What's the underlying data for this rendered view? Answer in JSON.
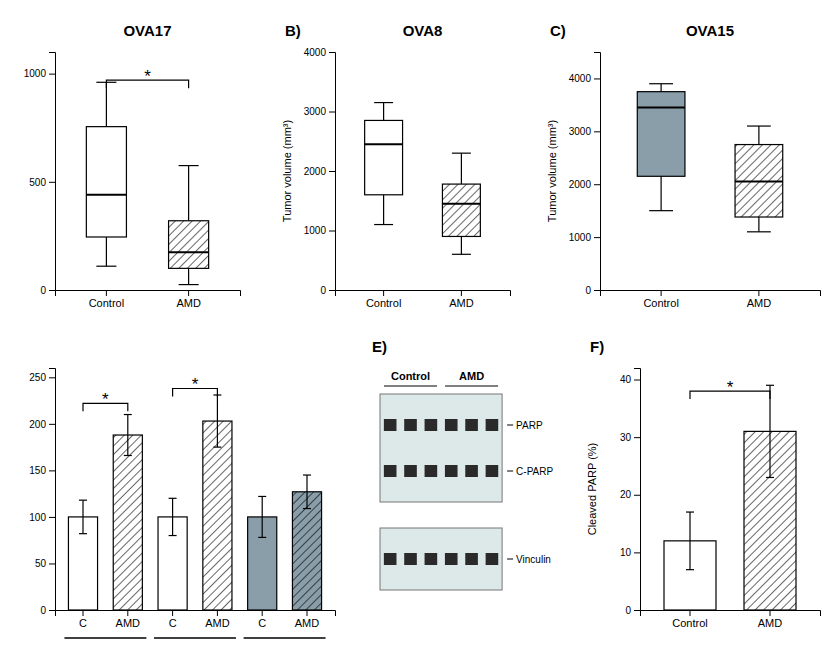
{
  "chart_data": [
    {
      "type": "box",
      "title": "OVA17",
      "categories": [
        "Control",
        "AMD"
      ],
      "values": [
        {
          "whislo": 110,
          "q1": 245,
          "med": 440,
          "q3": 755,
          "whishi": 960
        },
        {
          "whislo": 25,
          "q1": 100,
          "med": 175,
          "q3": 320,
          "whishi": 575
        }
      ],
      "colors": [
        "white",
        "white"
      ],
      "ylim": [
        0,
        1100
      ],
      "yticks": [
        0,
        500,
        1000
      ],
      "annotations": [
        {
          "text": "*",
          "between": [
            0,
            1
          ],
          "y": 970
        }
      ]
    },
    {
      "type": "box",
      "title": "OVA8",
      "ylabel": "Tumor volume (mm³)",
      "categories": [
        "Control",
        "AMD"
      ],
      "values": [
        {
          "whislo": 1100,
          "q1": 1600,
          "med": 2450,
          "q3": 2850,
          "whishi": 3150
        },
        {
          "whislo": 600,
          "q1": 900,
          "med": 1450,
          "q3": 1780,
          "whishi": 2300
        }
      ],
      "colors": [
        "white",
        "white"
      ],
      "ylim": [
        0,
        4000
      ],
      "yticks": [
        0,
        1000,
        2000,
        3000,
        4000
      ],
      "annotations": [
        {
          "text": "B)"
        }
      ]
    },
    {
      "type": "box",
      "title": "OVA15",
      "ylabel": "Tumor volume (mm³)",
      "categories": [
        "Control",
        "AMD"
      ],
      "values": [
        {
          "whislo": 1500,
          "q1": 2150,
          "med": 3450,
          "q3": 3750,
          "whishi": 3900
        },
        {
          "whislo": 1100,
          "q1": 1380,
          "med": 2050,
          "q3": 2750,
          "whishi": 3100
        }
      ],
      "colors": [
        "#8a9eaa",
        "white"
      ],
      "ylim": [
        0,
        4500
      ],
      "yticks": [
        0,
        1000,
        2000,
        3000,
        4000
      ],
      "annotations": [
        {
          "text": "C)"
        }
      ]
    },
    {
      "type": "bar",
      "categories": [
        "C",
        "AMD",
        "C",
        "AMD",
        "C",
        "AMD"
      ],
      "values": [
        100,
        188,
        100,
        203,
        100,
        127
      ],
      "errors": [
        18,
        22,
        20,
        28,
        22,
        18
      ],
      "colors": [
        "white",
        "white",
        "white",
        "white",
        "#8a9eaa",
        "#8a9eaa"
      ],
      "ylim": [
        0,
        260
      ],
      "yticks": [
        0,
        50,
        100,
        150,
        200,
        250
      ],
      "annotations": [
        {
          "text": "*",
          "between": [
            0,
            1
          ],
          "y": 222
        },
        {
          "text": "*",
          "between": [
            2,
            3
          ],
          "y": 238
        }
      ]
    },
    {
      "type": "blot",
      "categories": [
        "Control",
        "AMD"
      ],
      "bands": [
        "PARP",
        "C-PARP",
        "Vinculin"
      ],
      "annotations": [
        {
          "text": "E)"
        }
      ]
    },
    {
      "type": "bar",
      "ylabel": "Cleaved PARP (%)",
      "categories": [
        "Control",
        "AMD"
      ],
      "values": [
        12,
        31
      ],
      "errors": [
        5,
        8
      ],
      "colors": [
        "white",
        "white"
      ],
      "ylim": [
        0,
        42
      ],
      "yticks": [
        0,
        10,
        20,
        30,
        40
      ],
      "annotations": [
        {
          "text": "F)"
        },
        {
          "text": "*",
          "between": [
            0,
            1
          ],
          "y": 38
        }
      ]
    }
  ]
}
